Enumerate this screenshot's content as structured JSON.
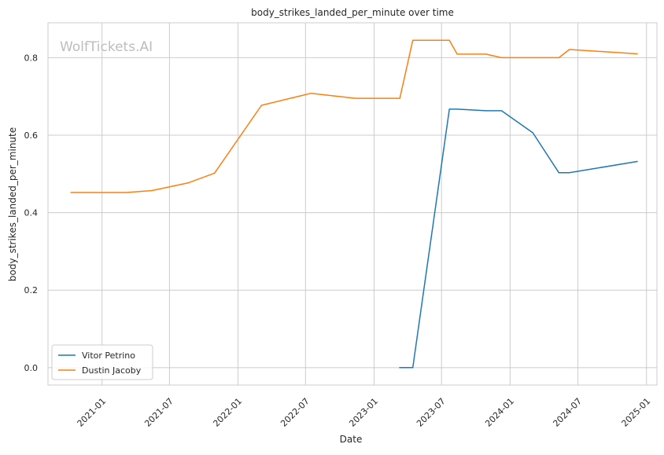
{
  "watermark": "WolfTickets.AI",
  "chart_data": {
    "type": "line",
    "title": "body_strikes_landed_per_minute over time",
    "xlabel": "Date",
    "ylabel": "body_strikes_landed_per_minute",
    "xlim": [
      "2020-08-09",
      "2025-01-29"
    ],
    "ylim": [
      -0.045,
      0.89
    ],
    "x_ticks": [
      "2021-01",
      "2021-07",
      "2022-01",
      "2022-07",
      "2023-01",
      "2023-07",
      "2024-01",
      "2024-07",
      "2025-01"
    ],
    "y_ticks": [
      0.0,
      0.2,
      0.4,
      0.6,
      0.8
    ],
    "y_tick_labels": [
      "0.0",
      "0.2",
      "0.4",
      "0.6",
      "0.8"
    ],
    "grid": true,
    "legend_position": "lower-left",
    "colors": {
      "Vitor Petrino": "#1f77b4",
      "Dustin Jacoby": "#ff7f0e"
    },
    "series": [
      {
        "name": "Vitor Petrino",
        "x": [
          "2023-03-11",
          "2023-04-15",
          "2023-07-22",
          "2023-08-12",
          "2023-10-28",
          "2023-12-09",
          "2024-03-02",
          "2024-05-11",
          "2024-06-08",
          "2024-12-07"
        ],
        "y": [
          0.0,
          0.0,
          0.667,
          0.667,
          0.663,
          0.663,
          0.606,
          0.503,
          0.503,
          0.532
        ]
      },
      {
        "name": "Dustin Jacoby",
        "x": [
          "2020-10-10",
          "2021-03-06",
          "2021-05-15",
          "2021-08-21",
          "2021-10-30",
          "2022-03-05",
          "2022-07-16",
          "2022-11-12",
          "2023-03-11",
          "2023-04-15",
          "2023-07-22",
          "2023-08-12",
          "2023-10-28",
          "2023-12-09",
          "2024-03-02",
          "2024-05-11",
          "2024-06-08",
          "2024-12-07"
        ],
        "y": [
          0.452,
          0.452,
          0.457,
          0.477,
          0.502,
          0.677,
          0.708,
          0.695,
          0.695,
          0.845,
          0.845,
          0.809,
          0.809,
          0.8,
          0.8,
          0.8,
          0.821,
          0.81
        ]
      }
    ]
  }
}
